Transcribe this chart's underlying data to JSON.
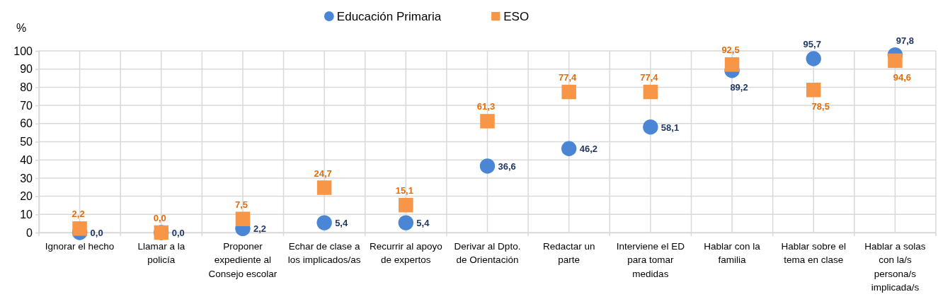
{
  "chart_data": {
    "type": "scatter",
    "ylabel": "%",
    "legend": "top",
    "grid": true,
    "categories": [
      "Ignorar el hecho",
      "Llamar a la policía",
      "Proponer expediente al Consejo escolar",
      "Echar de clase a los implicados/as",
      "Recurrir al apoyo de expertos",
      "Derivar al Dpto. de Orientación",
      "Redactar un parte",
      "Interviene el ED para tomar medidas",
      "Hablar con la familia",
      "Hablar sobre el tema en clase",
      "Hablar a solas con la/s persona/s implicada/s"
    ],
    "ylim": [
      0,
      100
    ],
    "yticks": [
      0,
      10,
      20,
      30,
      40,
      50,
      60,
      70,
      80,
      90,
      100
    ],
    "series": [
      {
        "name": "Educación Primaria",
        "color": "#4a86d4",
        "marker": "circle",
        "values": [
          0.0,
          0.0,
          2.2,
          5.4,
          5.4,
          36.6,
          46.2,
          58.1,
          89.2,
          95.7,
          97.8
        ],
        "value_labels": [
          "0,0",
          "0,0",
          "2,2",
          "5,4",
          "5,4",
          "36,6",
          "46,2",
          "58,1",
          "89,2",
          "95,7",
          "97,8"
        ]
      },
      {
        "name": "ESO",
        "color": "#f79646",
        "marker": "square",
        "values": [
          2.2,
          0.0,
          7.5,
          24.7,
          15.1,
          61.3,
          77.4,
          77.4,
          92.5,
          78.5,
          94.6
        ],
        "value_labels": [
          "2,2",
          "0,0",
          "7,5",
          "24,7",
          "15,1",
          "61,3",
          "77,4",
          "77,4",
          "92,5",
          "78,5",
          "94,6"
        ]
      }
    ]
  }
}
